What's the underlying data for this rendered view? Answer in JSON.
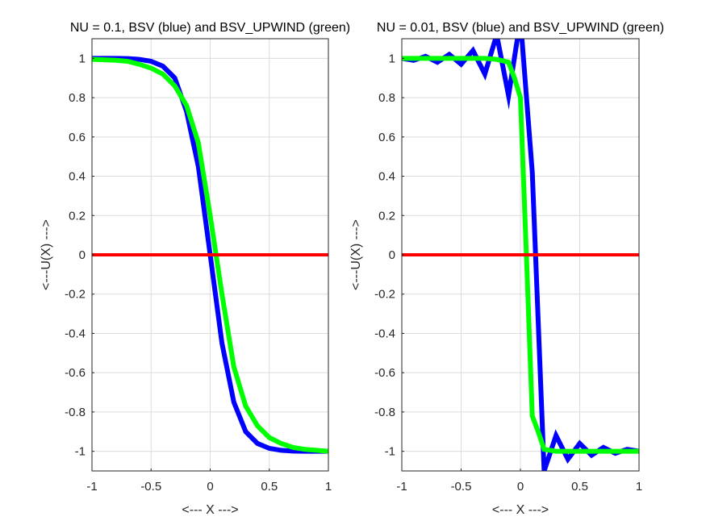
{
  "chart_data": [
    {
      "type": "line",
      "title": "NU = 0.1, BSV (blue) and BSV_UPWIND (green)",
      "xlabel": "<--- X --->",
      "ylabel": "<---U(X) --->",
      "xlim": [
        -1,
        1
      ],
      "ylim": [
        -1.1,
        1.1
      ],
      "xticks": [
        "-1",
        "-0.5",
        "0",
        "0.5",
        "1"
      ],
      "yticks": [
        "-1",
        "-0.8",
        "-0.6",
        "-0.4",
        "-0.2",
        "0",
        "0.2",
        "0.4",
        "0.6",
        "0.8",
        "1"
      ],
      "grid": true,
      "series": [
        {
          "color": "#0000ff",
          "x": [
            -1.0,
            -0.9,
            -0.8,
            -0.7,
            -0.6,
            -0.5,
            -0.4,
            -0.3,
            -0.2,
            -0.1,
            0.0,
            0.1,
            0.2,
            0.3,
            0.4,
            0.5,
            0.6,
            0.7,
            0.8,
            0.9,
            1.0
          ],
          "y": [
            1.0,
            1.0,
            1.0,
            0.999,
            0.995,
            0.985,
            0.96,
            0.9,
            0.73,
            0.45,
            0.0,
            -0.45,
            -0.75,
            -0.9,
            -0.96,
            -0.985,
            -0.995,
            -0.999,
            -1.0,
            -1.0,
            -1.0
          ]
        },
        {
          "color": "#00ff00",
          "x": [
            -1.0,
            -0.9,
            -0.8,
            -0.7,
            -0.6,
            -0.5,
            -0.4,
            -0.3,
            -0.2,
            -0.1,
            0.0,
            0.1,
            0.2,
            0.3,
            0.4,
            0.5,
            0.6,
            0.7,
            0.8,
            0.9,
            1.0
          ],
          "y": [
            0.995,
            0.993,
            0.99,
            0.985,
            0.97,
            0.95,
            0.92,
            0.86,
            0.76,
            0.57,
            0.2,
            -0.2,
            -0.57,
            -0.77,
            -0.87,
            -0.93,
            -0.96,
            -0.98,
            -0.99,
            -0.995,
            -1.0
          ]
        },
        {
          "color": "#ff0000",
          "x": [
            -1.0,
            1.0
          ],
          "y": [
            0.0,
            0.0
          ]
        }
      ]
    },
    {
      "type": "line",
      "title": "NU = 0.01, BSV (blue) and BSV_UPWIND (green)",
      "xlabel": "<--- X --->",
      "ylabel": "<---U(X) --->",
      "xlim": [
        -1,
        1
      ],
      "ylim": [
        -1.1,
        1.1
      ],
      "xticks": [
        "-1",
        "-0.5",
        "0",
        "0.5",
        "1"
      ],
      "yticks": [
        "-1",
        "-0.8",
        "-0.6",
        "-0.4",
        "-0.2",
        "0",
        "0.2",
        "0.4",
        "0.6",
        "0.8",
        "1"
      ],
      "grid": true,
      "series": [
        {
          "color": "#0000ff",
          "x": [
            -1.0,
            -0.9,
            -0.8,
            -0.7,
            -0.6,
            -0.5,
            -0.4,
            -0.3,
            -0.2,
            -0.1,
            0.0,
            0.1,
            0.2,
            0.3,
            0.4,
            0.5,
            0.6,
            0.7,
            0.8,
            0.9,
            1.0
          ],
          "y": [
            1.0,
            0.99,
            1.01,
            0.98,
            1.02,
            0.97,
            1.04,
            0.92,
            1.12,
            0.81,
            1.2,
            0.42,
            -1.1,
            -0.92,
            -1.04,
            -0.96,
            -1.02,
            -0.98,
            -1.01,
            -0.99,
            -1.0
          ]
        },
        {
          "color": "#00ff00",
          "x": [
            -1.0,
            -0.9,
            -0.8,
            -0.7,
            -0.6,
            -0.5,
            -0.4,
            -0.3,
            -0.2,
            -0.1,
            -0.05,
            0.0,
            0.05,
            0.1,
            0.15,
            0.2,
            0.3,
            0.4,
            0.5,
            0.6,
            0.7,
            0.8,
            0.9,
            1.0
          ],
          "y": [
            1.0,
            1.0,
            1.0,
            1.0,
            1.0,
            1.0,
            1.0,
            1.0,
            0.995,
            0.98,
            0.9,
            0.8,
            0.0,
            -0.82,
            -0.9,
            -0.99,
            -1.0,
            -1.0,
            -1.0,
            -1.0,
            -1.0,
            -1.0,
            -1.0,
            -1.0
          ]
        },
        {
          "color": "#ff0000",
          "x": [
            -1.0,
            1.0
          ],
          "y": [
            0.0,
            0.0
          ]
        }
      ]
    }
  ]
}
